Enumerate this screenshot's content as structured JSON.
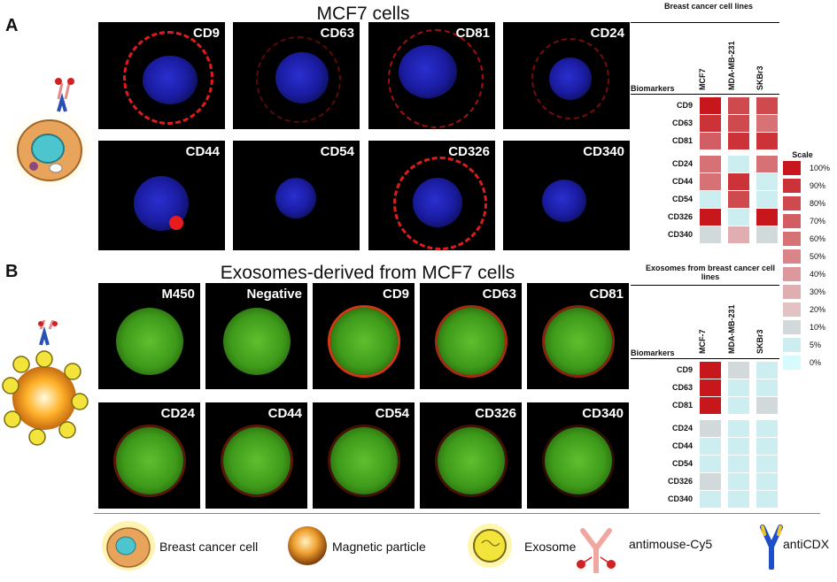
{
  "panel_a": {
    "letter": "A",
    "title": "MCF7 cells",
    "tiles": [
      "CD9",
      "CD63",
      "CD81",
      "CD24",
      "CD44",
      "CD54",
      "CD326",
      "CD340"
    ],
    "table_title": "Breast cancer cell lines",
    "biomarkers_header": "Biomarkers",
    "columns": [
      "MCF7",
      "MDA-MB-231",
      "SKBr3"
    ],
    "rows": [
      "CD9",
      "CD63",
      "CD81",
      "CD24",
      "CD44",
      "CD54",
      "CD326",
      "CD340"
    ],
    "values": [
      [
        100,
        80,
        80
      ],
      [
        90,
        80,
        60
      ],
      [
        70,
        90,
        90
      ],
      [
        60,
        5,
        60
      ],
      [
        60,
        90,
        5
      ],
      [
        5,
        80,
        5
      ],
      [
        100,
        5,
        100
      ],
      [
        10,
        30,
        10
      ]
    ]
  },
  "panel_b": {
    "letter": "B",
    "title": "Exosomes-derived from MCF7 cells",
    "tiles": [
      "M450",
      "Negative",
      "CD9",
      "CD63",
      "CD81",
      "CD24",
      "CD44",
      "CD54",
      "CD326",
      "CD340"
    ],
    "table_title": "Exosomes from breast cancer cell lines",
    "biomarkers_header": "Biomarkers",
    "columns": [
      "MCF-7",
      "MDA-MB-231",
      "SKBr3"
    ],
    "rows": [
      "CD9",
      "CD63",
      "CD81",
      "CD24",
      "CD44",
      "CD54",
      "CD326",
      "CD340"
    ],
    "values": [
      [
        100,
        10,
        5
      ],
      [
        100,
        5,
        5
      ],
      [
        100,
        5,
        10
      ],
      [
        10,
        5,
        5
      ],
      [
        5,
        5,
        5
      ],
      [
        5,
        5,
        5
      ],
      [
        10,
        5,
        5
      ],
      [
        5,
        5,
        5
      ]
    ]
  },
  "scale": {
    "title": "Scale",
    "labels": [
      "100%",
      "90%",
      "80%",
      "70%",
      "60%",
      "50%",
      "40%",
      "30%",
      "20%",
      "10%",
      "5%",
      "0%"
    ],
    "colors": [
      "#c8171c",
      "#cc3338",
      "#cf4a4f",
      "#d25d62",
      "#d67176",
      "#d98489",
      "#dc989c",
      "#e0aeb1",
      "#e3c2c4",
      "#d2d9da",
      "#cdeef0",
      "#d6fbfc"
    ]
  },
  "legend": {
    "breast_cancer_cell": "Breast cancer cell",
    "magnetic_particle": "Magnetic particle",
    "exosome": "Exosome",
    "antimouse": "antimouse-Cy5",
    "anticdx": "antiCDX"
  }
}
